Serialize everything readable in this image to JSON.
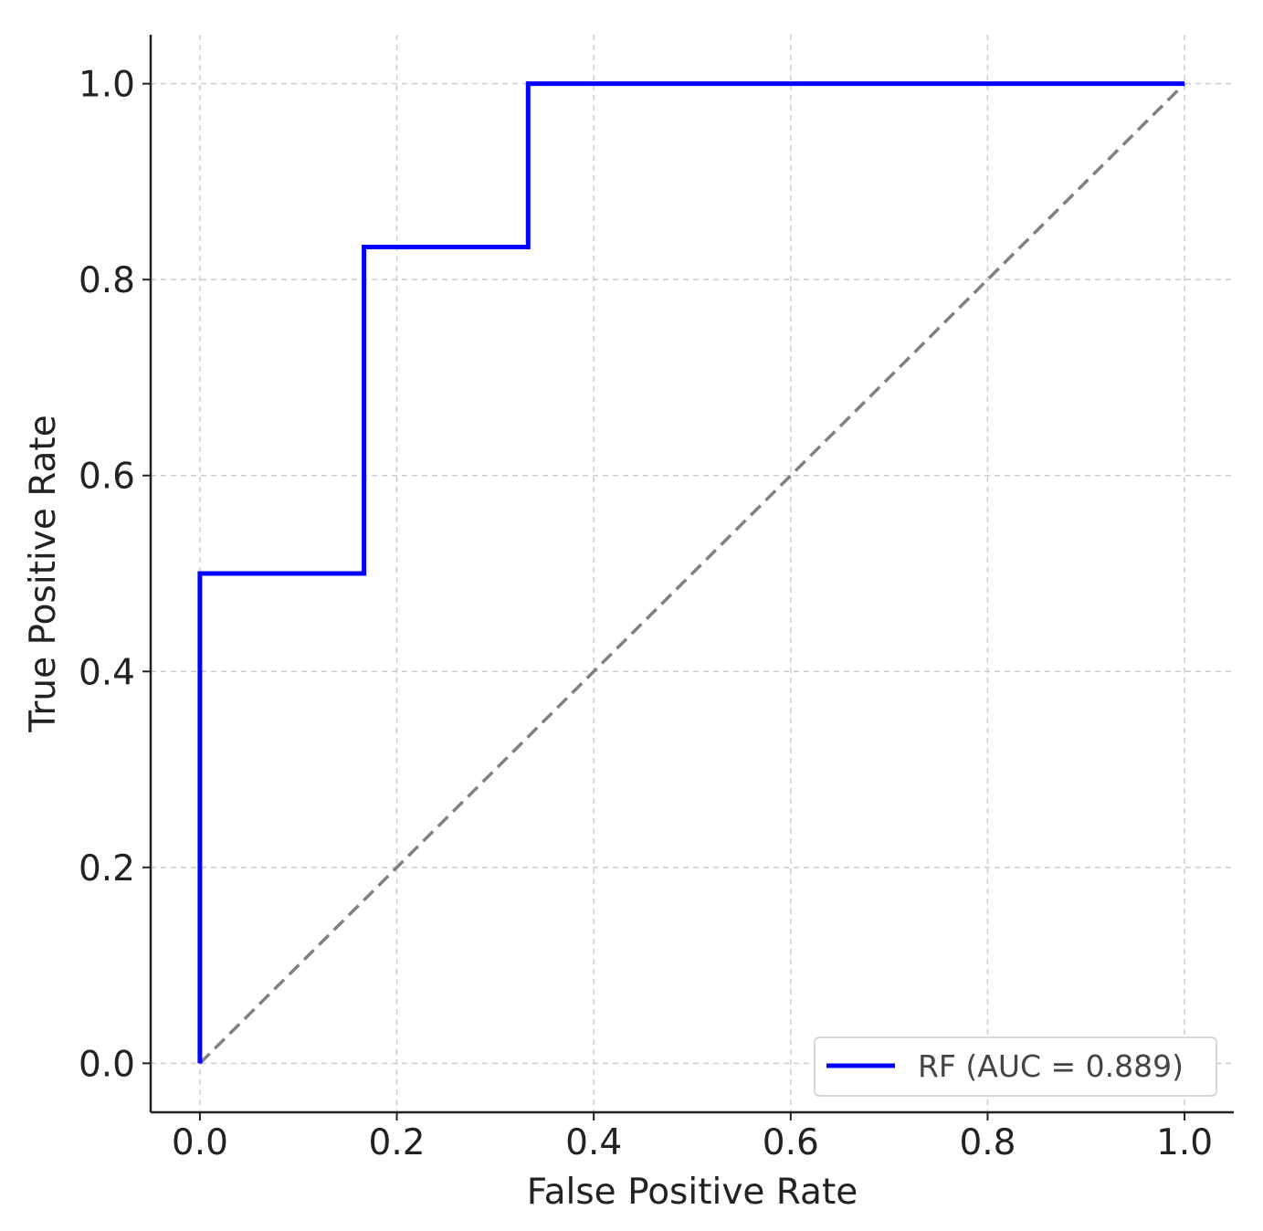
{
  "chart_data": {
    "type": "line",
    "xlabel": "False Positive Rate",
    "ylabel": "True Positive Rate",
    "xlim": [
      -0.05,
      1.05
    ],
    "ylim": [
      -0.05,
      1.05
    ],
    "xticks": [
      "0.0",
      "0.2",
      "0.4",
      "0.6",
      "0.8",
      "1.0"
    ],
    "yticks": [
      "0.0",
      "0.2",
      "0.4",
      "0.6",
      "0.8",
      "1.0"
    ],
    "grid": true,
    "legend_position": "lower-right",
    "series": [
      {
        "name": "RF (AUC = 0.889)",
        "color": "#0000ff",
        "style": "solid",
        "x": [
          0.0,
          0.0,
          0.0,
          0.1667,
          0.1667,
          0.3333,
          0.3333,
          1.0
        ],
        "y": [
          0.0,
          0.5,
          0.5,
          0.5,
          0.8333,
          0.8333,
          1.0,
          1.0
        ]
      },
      {
        "color": "#808080",
        "style": "dashed",
        "x": [
          0.0,
          1.0
        ],
        "y": [
          0.0,
          1.0
        ]
      }
    ]
  }
}
